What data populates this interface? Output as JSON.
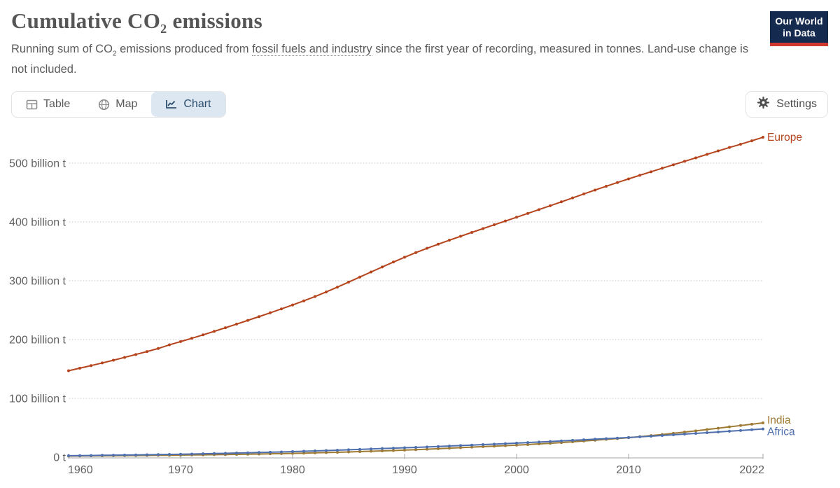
{
  "header": {
    "title": {
      "main": "Cumulative CO",
      "sub": "2",
      "rest": " emissions"
    },
    "subtitle": {
      "before": "Running sum of CO",
      "sub": "2",
      "mid": " emissions produced from ",
      "link": "fossil fuels and industry",
      "after": " since the first year of recording, measured in tonnes. Land-use change is not included."
    },
    "logo": {
      "line1": "Our World",
      "line2": "in Data"
    }
  },
  "toolbar": {
    "tabs": [
      {
        "id": "table",
        "label": "Table",
        "icon": "table-icon",
        "active": false
      },
      {
        "id": "map",
        "label": "Map",
        "icon": "globe-icon",
        "active": false
      },
      {
        "id": "chart",
        "label": "Chart",
        "icon": "chart-icon",
        "active": true
      }
    ],
    "active_tab": "Chart",
    "settings_label": "Settings"
  },
  "colors": {
    "europe": "#b5441d",
    "india": "#9e7a33",
    "africa": "#4e6fae",
    "active_tab_bg": "#dce7f2",
    "active_tab_text": "#2e4f6d",
    "logo_bg": "#142a4e",
    "logo_accent": "#d1382e",
    "gridline": "#c9c9c9",
    "axis": "#a6a6a6",
    "tick_text": "#606060"
  },
  "chart_data": {
    "type": "line",
    "title": "Cumulative CO2 emissions",
    "xlabel": "",
    "ylabel": "",
    "unit": "billion tonnes",
    "xlim": [
      1960,
      2022
    ],
    "ylim": [
      0,
      560
    ],
    "grid": "horizontal-dotted",
    "legend": "end-of-line labels",
    "x": [
      1960,
      1961,
      1962,
      1963,
      1964,
      1965,
      1966,
      1967,
      1968,
      1969,
      1970,
      1971,
      1972,
      1973,
      1974,
      1975,
      1976,
      1977,
      1978,
      1979,
      1980,
      1981,
      1982,
      1983,
      1984,
      1985,
      1986,
      1987,
      1988,
      1989,
      1990,
      1991,
      1992,
      1993,
      1994,
      1995,
      1996,
      1997,
      1998,
      1999,
      2000,
      2001,
      2002,
      2003,
      2004,
      2005,
      2006,
      2007,
      2008,
      2009,
      2010,
      2011,
      2012,
      2013,
      2014,
      2015,
      2016,
      2017,
      2018,
      2019,
      2020,
      2021,
      2022
    ],
    "series": [
      {
        "name": "Europe",
        "color": "#b5441d",
        "label_dy": 0,
        "values": [
          147.0,
          151.3,
          155.7,
          160.2,
          164.9,
          169.7,
          174.6,
          179.6,
          184.8,
          191.0,
          196.6,
          202.2,
          208.0,
          214.0,
          220.1,
          226.3,
          232.6,
          239.0,
          245.5,
          252.1,
          258.8,
          265.8,
          273.2,
          281.0,
          289.2,
          297.7,
          306.3,
          314.9,
          323.4,
          331.8,
          340.0,
          347.8,
          355.2,
          362.2,
          369.0,
          375.6,
          382.2,
          388.7,
          395.2,
          401.6,
          408.0,
          414.5,
          421.0,
          427.6,
          434.2,
          440.9,
          447.6,
          454.2,
          460.7,
          467.0,
          473.2,
          479.3,
          485.3,
          491.3,
          497.2,
          503.1,
          509.0,
          514.9,
          520.8,
          526.6,
          532.1,
          538.0,
          544.0
        ]
      },
      {
        "name": "India",
        "color": "#9e7a33",
        "label_dy": -4,
        "values": [
          2.0,
          2.1,
          2.3,
          2.4,
          2.6,
          2.7,
          2.9,
          3.0,
          3.2,
          3.3,
          3.5,
          3.8,
          4.0,
          4.3,
          4.5,
          4.8,
          5.1,
          5.4,
          5.8,
          6.1,
          6.5,
          6.9,
          7.4,
          7.9,
          8.4,
          9.0,
          9.5,
          10.1,
          10.7,
          11.3,
          12.0,
          12.8,
          13.6,
          14.4,
          15.3,
          16.2,
          17.1,
          18.0,
          18.8,
          19.6,
          20.5,
          21.5,
          22.6,
          23.7,
          24.9,
          26.2,
          27.5,
          28.9,
          30.3,
          31.7,
          33.2,
          34.9,
          36.7,
          38.6,
          40.6,
          42.7,
          44.8,
          47.0,
          49.3,
          51.6,
          53.8,
          56.1,
          58.3
        ]
      },
      {
        "name": "Africa",
        "color": "#4e6fae",
        "label_dy": 4,
        "values": [
          2.5,
          2.7,
          2.9,
          3.2,
          3.4,
          3.7,
          3.9,
          4.2,
          4.4,
          4.7,
          5.0,
          5.4,
          5.8,
          6.2,
          6.6,
          7.1,
          7.5,
          8.0,
          8.5,
          9.0,
          9.5,
          10.1,
          10.7,
          11.3,
          11.9,
          12.6,
          13.3,
          14.0,
          14.7,
          15.3,
          16.0,
          16.7,
          17.4,
          18.2,
          19.0,
          19.8,
          20.6,
          21.4,
          22.2,
          23.1,
          24.0,
          24.9,
          25.8,
          26.7,
          27.7,
          28.7,
          29.6,
          30.6,
          31.6,
          32.5,
          33.5,
          34.6,
          35.7,
          36.9,
          38.1,
          39.3,
          40.5,
          41.7,
          42.9,
          44.2,
          45.4,
          46.7,
          48.0
        ]
      }
    ],
    "yticks": [
      {
        "value": 0,
        "label": "0 t"
      },
      {
        "value": 100,
        "label": "100 billion t"
      },
      {
        "value": 200,
        "label": "200 billion t"
      },
      {
        "value": 300,
        "label": "300 billion t"
      },
      {
        "value": 400,
        "label": "400 billion t"
      },
      {
        "value": 500,
        "label": "500 billion t"
      }
    ],
    "xticks": [
      {
        "value": 1960,
        "label": "1960"
      },
      {
        "value": 1970,
        "label": "1970"
      },
      {
        "value": 1980,
        "label": "1980"
      },
      {
        "value": 1990,
        "label": "1990"
      },
      {
        "value": 2000,
        "label": "2000"
      },
      {
        "value": 2010,
        "label": "2010"
      },
      {
        "value": 2022,
        "label": "2022"
      }
    ]
  }
}
